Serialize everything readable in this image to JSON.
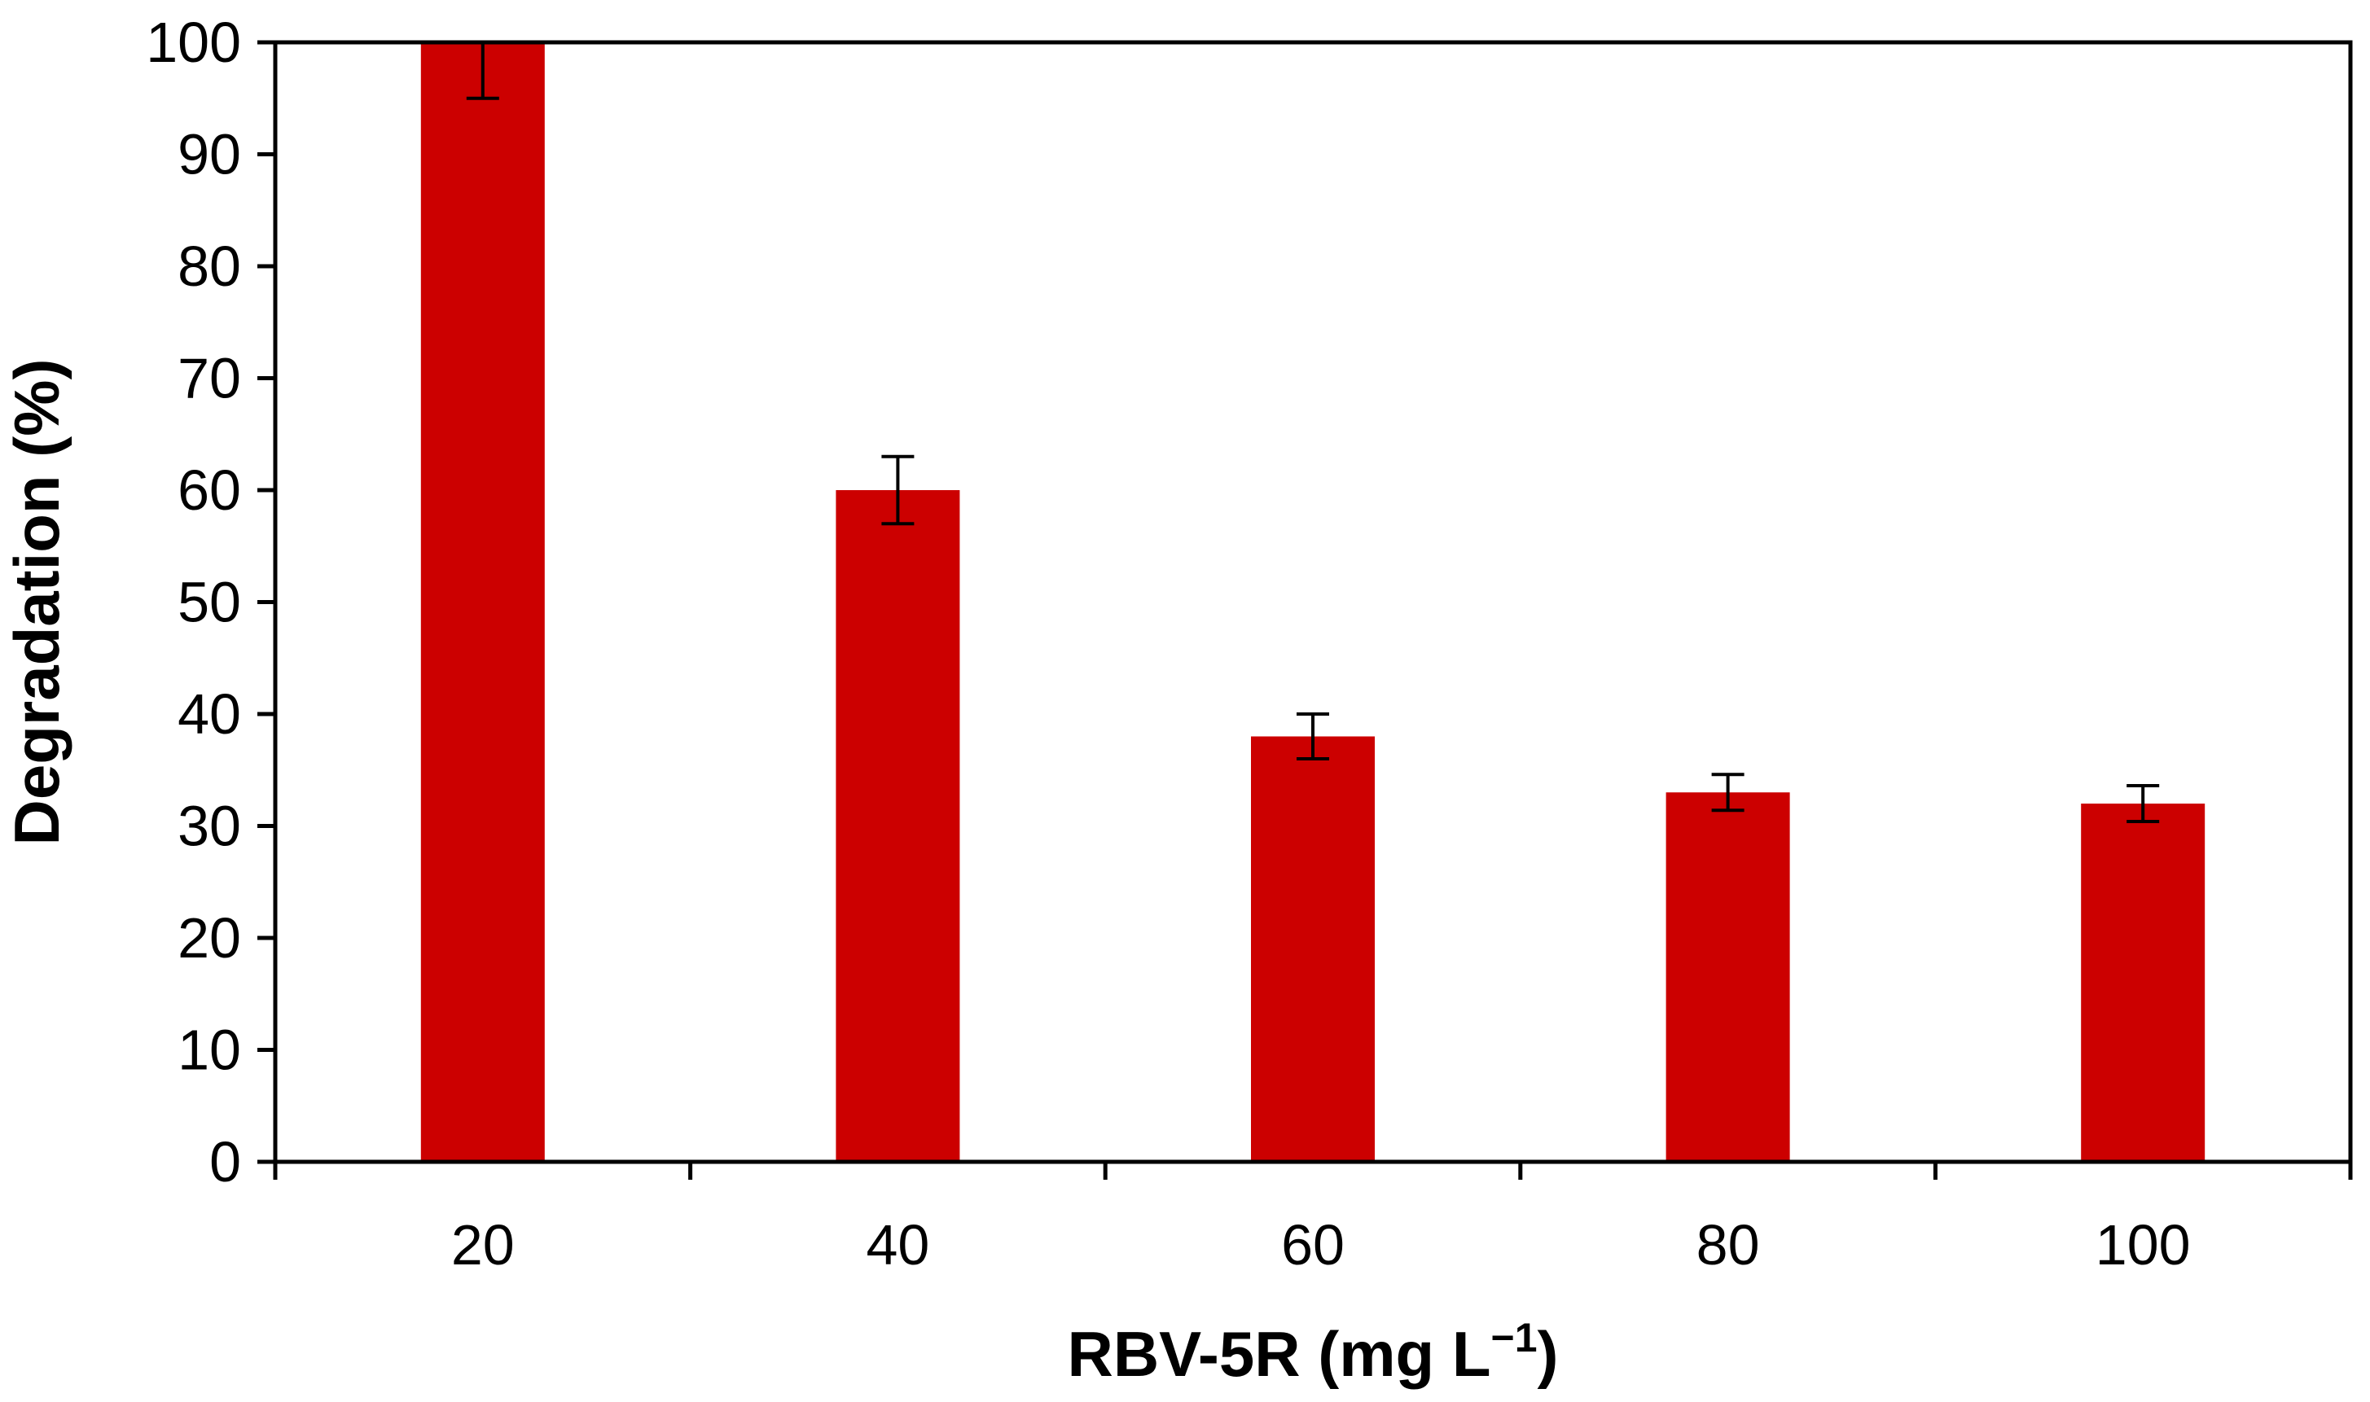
{
  "chart_data": {
    "type": "bar",
    "title": "",
    "categories": [
      "20",
      "40",
      "60",
      "80",
      "100"
    ],
    "series": [
      {
        "name": "Degradation",
        "values": [
          100,
          60,
          38,
          33,
          32
        ],
        "errors": [
          5,
          3,
          2,
          1.6,
          1.6
        ],
        "color": "#cc0000"
      }
    ],
    "xlabel": "RBV-5R (mg L",
    "xlabel_superscript": "−1",
    "xlabel_suffix": ")",
    "ylabel": "Degradation (%)",
    "ylim": [
      0,
      100
    ],
    "yticks": [
      0,
      10,
      20,
      30,
      40,
      50,
      60,
      70,
      80,
      90,
      100
    ],
    "grid": false,
    "legend": "none"
  }
}
